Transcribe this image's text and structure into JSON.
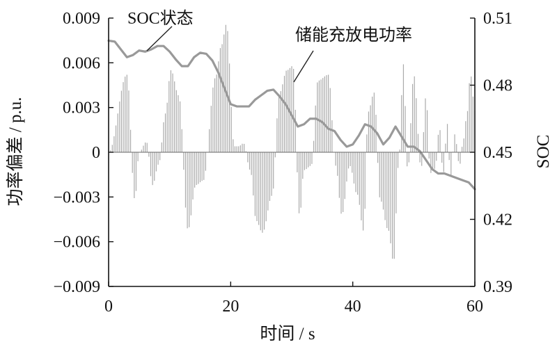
{
  "chart_data": {
    "type": "line",
    "title": "",
    "xlabel": "时间 / s",
    "ylabel_left": "功率偏差 / p.u.",
    "ylabel_right": "SOC",
    "xlim": [
      0,
      60
    ],
    "ylim_left": [
      -0.009,
      0.009
    ],
    "ylim_right": [
      0.39,
      0.51
    ],
    "x_ticks": [
      "0",
      "20",
      "40",
      "60"
    ],
    "x_tick_values": [
      0,
      20,
      40,
      60
    ],
    "y_left_ticks": [
      "0.009",
      "0.006",
      "0.003",
      "0",
      "−0.003",
      "−0.006",
      "−0.009"
    ],
    "y_left_tick_values": [
      0.009,
      0.006,
      0.003,
      0,
      -0.003,
      -0.006,
      -0.009
    ],
    "y_right_ticks": [
      "0.51",
      "0.48",
      "0.45",
      "0.42",
      "0.39"
    ],
    "y_right_tick_values": [
      0.51,
      0.48,
      0.45,
      0.42,
      0.39
    ],
    "grid": false,
    "annotations": [
      {
        "text": "SOC状态",
        "target_series": "soc"
      },
      {
        "text": "储能充放电功率",
        "target_series": "power"
      }
    ],
    "series": [
      {
        "id": "soc",
        "kind": "line",
        "axis": "right",
        "color": "#999999",
        "x": [
          0,
          1,
          2,
          3,
          4,
          5,
          6,
          7,
          8,
          9,
          10,
          11,
          12,
          13,
          14,
          15,
          16,
          17,
          18,
          19,
          20,
          21,
          22,
          23,
          24,
          25,
          26,
          27,
          28,
          29,
          30,
          31,
          32,
          33,
          34,
          35,
          36,
          37,
          38,
          39,
          40,
          41,
          42,
          43,
          44,
          45,
          46,
          47,
          48,
          49,
          50,
          51,
          52,
          53,
          54,
          55,
          56,
          57,
          58,
          59,
          60
        ],
        "values": [
          0.4999,
          0.4995,
          0.496,
          0.4925,
          0.4935,
          0.4955,
          0.495,
          0.496,
          0.4975,
          0.4975,
          0.495,
          0.4915,
          0.4885,
          0.4885,
          0.4925,
          0.4945,
          0.494,
          0.491,
          0.4855,
          0.4785,
          0.4715,
          0.4705,
          0.4705,
          0.4705,
          0.4735,
          0.4755,
          0.4775,
          0.478,
          0.475,
          0.4715,
          0.4665,
          0.4615,
          0.4625,
          0.465,
          0.465,
          0.4635,
          0.4605,
          0.4595,
          0.4555,
          0.4525,
          0.4535,
          0.4575,
          0.4625,
          0.4615,
          0.4585,
          0.4535,
          0.4565,
          0.4615,
          0.457,
          0.4525,
          0.4525,
          0.4505,
          0.4465,
          0.4425,
          0.4405,
          0.4405,
          0.4395,
          0.4385,
          0.4375,
          0.4365,
          0.4335
        ]
      },
      {
        "id": "power",
        "kind": "bars",
        "axis": "left",
        "color": "#aaaaaa",
        "x_step": 0.3,
        "x": [
          0,
          3,
          4.3,
          5,
          6.2,
          7.2,
          8.2,
          9.3,
          10.2,
          11.5,
          13,
          14.3,
          15.5,
          17.5,
          18.5,
          19.3,
          20.6,
          21.3,
          22.1,
          23.2,
          24.2,
          25.2,
          26.8,
          28,
          29.2,
          30.2,
          31.3,
          32,
          33.2,
          34.3,
          36,
          37.2,
          38.2,
          39.5,
          40.7,
          41.8,
          42.5,
          43.5,
          44.5,
          45.8,
          46.7,
          47.5,
          48.3,
          49,
          50,
          51.2,
          52,
          52.7,
          53.5,
          54.2,
          54.8,
          55.5,
          56,
          56.7,
          57.5,
          58,
          58.6,
          59.3,
          60
        ],
        "values": [
          0,
          0.0052,
          -0.0032,
          0,
          0.0007,
          -0.0022,
          -0.0008,
          0.0026,
          0.0055,
          0.0038,
          -0.0052,
          -0.0022,
          -0.0019,
          0.005,
          0.0072,
          0.0086,
          0.0004,
          0.0004,
          0.0006,
          -0.0012,
          -0.0046,
          -0.0054,
          -0.0029,
          0.004,
          0.0055,
          0.0058,
          -0.0043,
          -0.0012,
          -0.0009,
          0.0048,
          0.0052,
          -0.0009,
          -0.0042,
          -0.0009,
          -0.0028,
          -0.0053,
          0.0027,
          0.004,
          -0.0032,
          -0.0052,
          -0.0074,
          -0.0008,
          0.0059,
          -0.0013,
          0.0052,
          -0.0011,
          0.0038,
          -0.0014,
          -0.0011,
          0.0017,
          -0.0015,
          0.0019,
          -0.0018,
          0.0012,
          -0.0009,
          0.0005,
          0.0022,
          0.0052,
          0.0028
        ]
      }
    ]
  }
}
